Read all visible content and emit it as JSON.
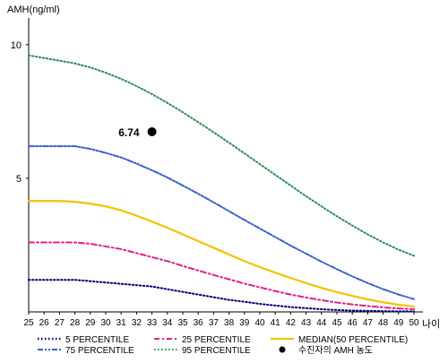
{
  "chart_data": {
    "type": "line",
    "title": "",
    "xlabel": "나이",
    "ylabel": "AMH(ng/ml)",
    "x": [
      25,
      26,
      27,
      28,
      29,
      30,
      31,
      32,
      33,
      34,
      35,
      36,
      37,
      38,
      39,
      40,
      41,
      42,
      43,
      44,
      45,
      46,
      47,
      48,
      49,
      50
    ],
    "xlim": [
      25,
      50
    ],
    "ylim": [
      0,
      11
    ],
    "x_ticks": [
      "25",
      "26",
      "27",
      "28",
      "29",
      "30",
      "31",
      "32",
      "33",
      "34",
      "35",
      "36",
      "37",
      "38",
      "39",
      "40",
      "41",
      "42",
      "43",
      "44",
      "45",
      "46",
      "47",
      "48",
      "49",
      "50"
    ],
    "y_ticks": [
      5,
      10
    ],
    "y_tick_labels": [
      "5",
      "10"
    ],
    "grid": false,
    "legend_position": "bottom",
    "series": [
      {
        "name": "5 PERCENTILE",
        "color": "#000080",
        "dash": "dot",
        "values": [
          1.2,
          1.2,
          1.2,
          1.2,
          1.15,
          1.1,
          1.05,
          1.0,
          0.95,
          0.85,
          0.75,
          0.65,
          0.55,
          0.45,
          0.38,
          0.3,
          0.24,
          0.18,
          0.14,
          0.1,
          0.07,
          0.05,
          0.04,
          0.03,
          0.02,
          0.02
        ]
      },
      {
        "name": "25 PERCENTILE",
        "color": "#e0208a",
        "dash": "dashdot",
        "values": [
          2.6,
          2.6,
          2.6,
          2.6,
          2.55,
          2.45,
          2.35,
          2.2,
          2.05,
          1.9,
          1.72,
          1.55,
          1.38,
          1.22,
          1.06,
          0.92,
          0.78,
          0.65,
          0.54,
          0.44,
          0.35,
          0.28,
          0.22,
          0.17,
          0.13,
          0.1
        ]
      },
      {
        "name": "MEDIAN(50 PERCENTILE)",
        "color": "#f2c300",
        "dash": "solid",
        "values": [
          4.15,
          4.15,
          4.15,
          4.12,
          4.05,
          3.95,
          3.8,
          3.6,
          3.38,
          3.15,
          2.9,
          2.65,
          2.4,
          2.15,
          1.9,
          1.68,
          1.47,
          1.27,
          1.08,
          0.9,
          0.74,
          0.6,
          0.47,
          0.36,
          0.27,
          0.2
        ]
      },
      {
        "name": "75 PERCENTILE",
        "color": "#3a5fcd",
        "dash": "dashdotdot",
        "values": [
          6.2,
          6.2,
          6.2,
          6.2,
          6.1,
          5.95,
          5.78,
          5.55,
          5.3,
          5.03,
          4.73,
          4.42,
          4.1,
          3.77,
          3.44,
          3.12,
          2.8,
          2.48,
          2.18,
          1.88,
          1.6,
          1.33,
          1.08,
          0.85,
          0.65,
          0.48
        ]
      },
      {
        "name": "95 PERCENTILE",
        "color": "#2e8b57",
        "dash": "dot",
        "values": [
          9.6,
          9.5,
          9.4,
          9.3,
          9.15,
          8.95,
          8.72,
          8.45,
          8.15,
          7.82,
          7.47,
          7.1,
          6.72,
          6.33,
          5.93,
          5.53,
          5.13,
          4.73,
          4.33,
          3.95,
          3.58,
          3.23,
          2.9,
          2.6,
          2.33,
          2.1
        ]
      }
    ],
    "marker": {
      "name": "수진자의 AMH 농도",
      "x": 33,
      "y": 6.74,
      "label": "6.74",
      "color": "#000000"
    }
  }
}
